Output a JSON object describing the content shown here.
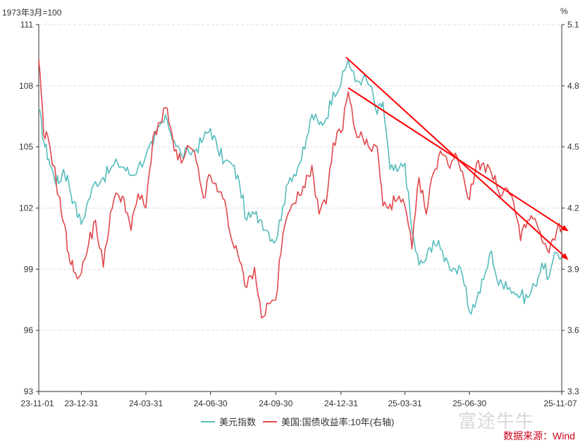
{
  "chart_data": {
    "type": "line",
    "left_unit": "1973年3月=100",
    "right_unit": "%",
    "colors": {
      "dxy": "#56bcbc",
      "yield": "#e0484c",
      "arrow": "#ff0000",
      "grid": "#dddddd"
    },
    "x_ticks": [
      "23-11-01",
      "23-12-31",
      "24-03-31",
      "24-06-30",
      "24-09-30",
      "24-12-31",
      "25-03-31",
      "25-06-30",
      "25-11-07"
    ],
    "x_range": [
      "2023-11-01",
      "2025-11-07"
    ],
    "y_left": {
      "ticks": [
        "93",
        "96",
        "99",
        "102",
        "105",
        "108",
        "111"
      ],
      "range": [
        93,
        111
      ]
    },
    "y_right": {
      "ticks": [
        "3.3",
        "3.6",
        "3.9",
        "4.2",
        "4.5",
        "4.8",
        "5.1"
      ],
      "range": [
        3.3,
        5.1
      ]
    },
    "grid": true,
    "legend_position": "bottom",
    "series": [
      {
        "name": "美元指数",
        "axis": "left",
        "points": [
          [
            "2023-11-01",
            106.9
          ],
          [
            "2023-11-08",
            105.3
          ],
          [
            "2023-11-15",
            104.4
          ],
          [
            "2023-11-22",
            103.6
          ],
          [
            "2023-11-29",
            103.2
          ],
          [
            "2023-12-06",
            103.9
          ],
          [
            "2023-12-13",
            103.3
          ],
          [
            "2023-12-20",
            102.3
          ],
          [
            "2023-12-31",
            101.2
          ],
          [
            "2024-01-10",
            102.4
          ],
          [
            "2024-01-20",
            103.3
          ],
          [
            "2024-01-31",
            103.5
          ],
          [
            "2024-02-10",
            103.9
          ],
          [
            "2024-02-20",
            104.2
          ],
          [
            "2024-02-29",
            104.0
          ],
          [
            "2024-03-10",
            103.6
          ],
          [
            "2024-03-20",
            104.0
          ],
          [
            "2024-03-31",
            104.6
          ],
          [
            "2024-04-10",
            105.1
          ],
          [
            "2024-04-20",
            106.1
          ],
          [
            "2024-04-30",
            106.3
          ],
          [
            "2024-05-10",
            105.3
          ],
          [
            "2024-05-20",
            104.6
          ],
          [
            "2024-05-31",
            104.7
          ],
          [
            "2024-06-10",
            104.9
          ],
          [
            "2024-06-20",
            105.4
          ],
          [
            "2024-06-30",
            105.9
          ],
          [
            "2024-07-10",
            104.9
          ],
          [
            "2024-07-20",
            104.3
          ],
          [
            "2024-07-31",
            104.1
          ],
          [
            "2024-08-10",
            103.2
          ],
          [
            "2024-08-20",
            101.4
          ],
          [
            "2024-08-31",
            101.7
          ],
          [
            "2024-09-10",
            101.4
          ],
          [
            "2024-09-20",
            100.8
          ],
          [
            "2024-09-30",
            100.4
          ],
          [
            "2024-10-10",
            102.1
          ],
          [
            "2024-10-20",
            103.5
          ],
          [
            "2024-10-31",
            104.0
          ],
          [
            "2024-11-10",
            104.9
          ],
          [
            "2024-11-20",
            106.6
          ],
          [
            "2024-11-30",
            106.1
          ],
          [
            "2024-12-10",
            106.4
          ],
          [
            "2024-12-20",
            107.7
          ],
          [
            "2024-12-31",
            108.1
          ],
          [
            "2025-01-10",
            109.3
          ],
          [
            "2025-01-20",
            108.2
          ],
          [
            "2025-01-31",
            108.4
          ],
          [
            "2025-02-10",
            108.0
          ],
          [
            "2025-02-20",
            106.6
          ],
          [
            "2025-02-28",
            107.2
          ],
          [
            "2025-03-10",
            103.9
          ],
          [
            "2025-03-20",
            103.8
          ],
          [
            "2025-03-31",
            104.2
          ],
          [
            "2025-04-10",
            100.8
          ],
          [
            "2025-04-20",
            99.2
          ],
          [
            "2025-04-30",
            99.5
          ],
          [
            "2025-05-10",
            100.4
          ],
          [
            "2025-05-20",
            100.0
          ],
          [
            "2025-05-31",
            99.3
          ],
          [
            "2025-06-10",
            99.0
          ],
          [
            "2025-06-20",
            98.7
          ],
          [
            "2025-06-30",
            96.9
          ],
          [
            "2025-07-10",
            97.5
          ],
          [
            "2025-07-20",
            98.5
          ],
          [
            "2025-07-31",
            99.9
          ],
          [
            "2025-08-10",
            98.2
          ],
          [
            "2025-08-20",
            98.4
          ],
          [
            "2025-08-31",
            97.9
          ],
          [
            "2025-09-10",
            97.7
          ],
          [
            "2025-09-20",
            97.6
          ],
          [
            "2025-09-30",
            98.2
          ],
          [
            "2025-10-10",
            99.3
          ],
          [
            "2025-10-20",
            98.6
          ],
          [
            "2025-10-31",
            99.8
          ],
          [
            "2025-11-07",
            99.6
          ]
        ]
      },
      {
        "name": "美国:国债收益率:10年(右轴)",
        "axis": "right",
        "points": [
          [
            "2023-11-01",
            4.93
          ],
          [
            "2023-11-08",
            4.56
          ],
          [
            "2023-11-15",
            4.53
          ],
          [
            "2023-11-22",
            4.41
          ],
          [
            "2023-11-29",
            4.26
          ],
          [
            "2023-12-06",
            4.13
          ],
          [
            "2023-12-13",
            3.98
          ],
          [
            "2023-12-20",
            3.89
          ],
          [
            "2023-12-31",
            3.88
          ],
          [
            "2024-01-10",
            4.02
          ],
          [
            "2024-01-20",
            4.14
          ],
          [
            "2024-01-31",
            3.91
          ],
          [
            "2024-02-10",
            4.18
          ],
          [
            "2024-02-20",
            4.27
          ],
          [
            "2024-02-29",
            4.25
          ],
          [
            "2024-03-10",
            4.09
          ],
          [
            "2024-03-20",
            4.27
          ],
          [
            "2024-03-31",
            4.2
          ],
          [
            "2024-04-10",
            4.55
          ],
          [
            "2024-04-20",
            4.62
          ],
          [
            "2024-04-30",
            4.69
          ],
          [
            "2024-05-10",
            4.48
          ],
          [
            "2024-05-20",
            4.42
          ],
          [
            "2024-05-31",
            4.5
          ],
          [
            "2024-06-10",
            4.43
          ],
          [
            "2024-06-20",
            4.25
          ],
          [
            "2024-06-30",
            4.36
          ],
          [
            "2024-07-10",
            4.28
          ],
          [
            "2024-07-20",
            4.24
          ],
          [
            "2024-07-31",
            4.03
          ],
          [
            "2024-08-10",
            3.94
          ],
          [
            "2024-08-20",
            3.81
          ],
          [
            "2024-08-31",
            3.91
          ],
          [
            "2024-09-10",
            3.66
          ],
          [
            "2024-09-20",
            3.73
          ],
          [
            "2024-09-30",
            3.75
          ],
          [
            "2024-10-10",
            4.07
          ],
          [
            "2024-10-20",
            4.19
          ],
          [
            "2024-10-31",
            4.28
          ],
          [
            "2024-11-10",
            4.3
          ],
          [
            "2024-11-20",
            4.41
          ],
          [
            "2024-11-30",
            4.17
          ],
          [
            "2024-12-10",
            4.22
          ],
          [
            "2024-12-20",
            4.52
          ],
          [
            "2024-12-31",
            4.57
          ],
          [
            "2025-01-10",
            4.77
          ],
          [
            "2025-01-20",
            4.58
          ],
          [
            "2025-01-31",
            4.54
          ],
          [
            "2025-02-10",
            4.49
          ],
          [
            "2025-02-20",
            4.5
          ],
          [
            "2025-02-28",
            4.21
          ],
          [
            "2025-03-10",
            4.22
          ],
          [
            "2025-03-20",
            4.24
          ],
          [
            "2025-03-31",
            4.21
          ],
          [
            "2025-04-10",
            4.0
          ],
          [
            "2025-04-20",
            4.35
          ],
          [
            "2025-04-30",
            4.17
          ],
          [
            "2025-05-10",
            4.37
          ],
          [
            "2025-05-20",
            4.48
          ],
          [
            "2025-05-31",
            4.41
          ],
          [
            "2025-06-10",
            4.47
          ],
          [
            "2025-06-20",
            4.38
          ],
          [
            "2025-06-30",
            4.24
          ],
          [
            "2025-07-10",
            4.42
          ],
          [
            "2025-07-20",
            4.42
          ],
          [
            "2025-07-31",
            4.37
          ],
          [
            "2025-08-10",
            4.28
          ],
          [
            "2025-08-20",
            4.3
          ],
          [
            "2025-08-31",
            4.23
          ],
          [
            "2025-09-10",
            4.04
          ],
          [
            "2025-09-20",
            4.14
          ],
          [
            "2025-09-30",
            4.15
          ],
          [
            "2025-10-10",
            4.04
          ],
          [
            "2025-10-20",
            3.98
          ],
          [
            "2025-10-31",
            4.09
          ],
          [
            "2025-11-07",
            4.1
          ]
        ]
      }
    ],
    "annotations": [
      {
        "type": "arrow",
        "axis": "left",
        "from": [
          "2025-01-07",
          109.4
        ],
        "to": [
          "2025-11-07",
          99.5
        ]
      },
      {
        "type": "arrow",
        "axis": "right",
        "from": [
          "2025-01-10",
          4.79
        ],
        "to": [
          "2025-11-07",
          4.09
        ]
      }
    ]
  },
  "legend": {
    "item1": "美元指数",
    "item2": "美国:国债收益率:10年(右轴)"
  },
  "watermark": "富途牛牛",
  "source": "数据来源：Wind"
}
